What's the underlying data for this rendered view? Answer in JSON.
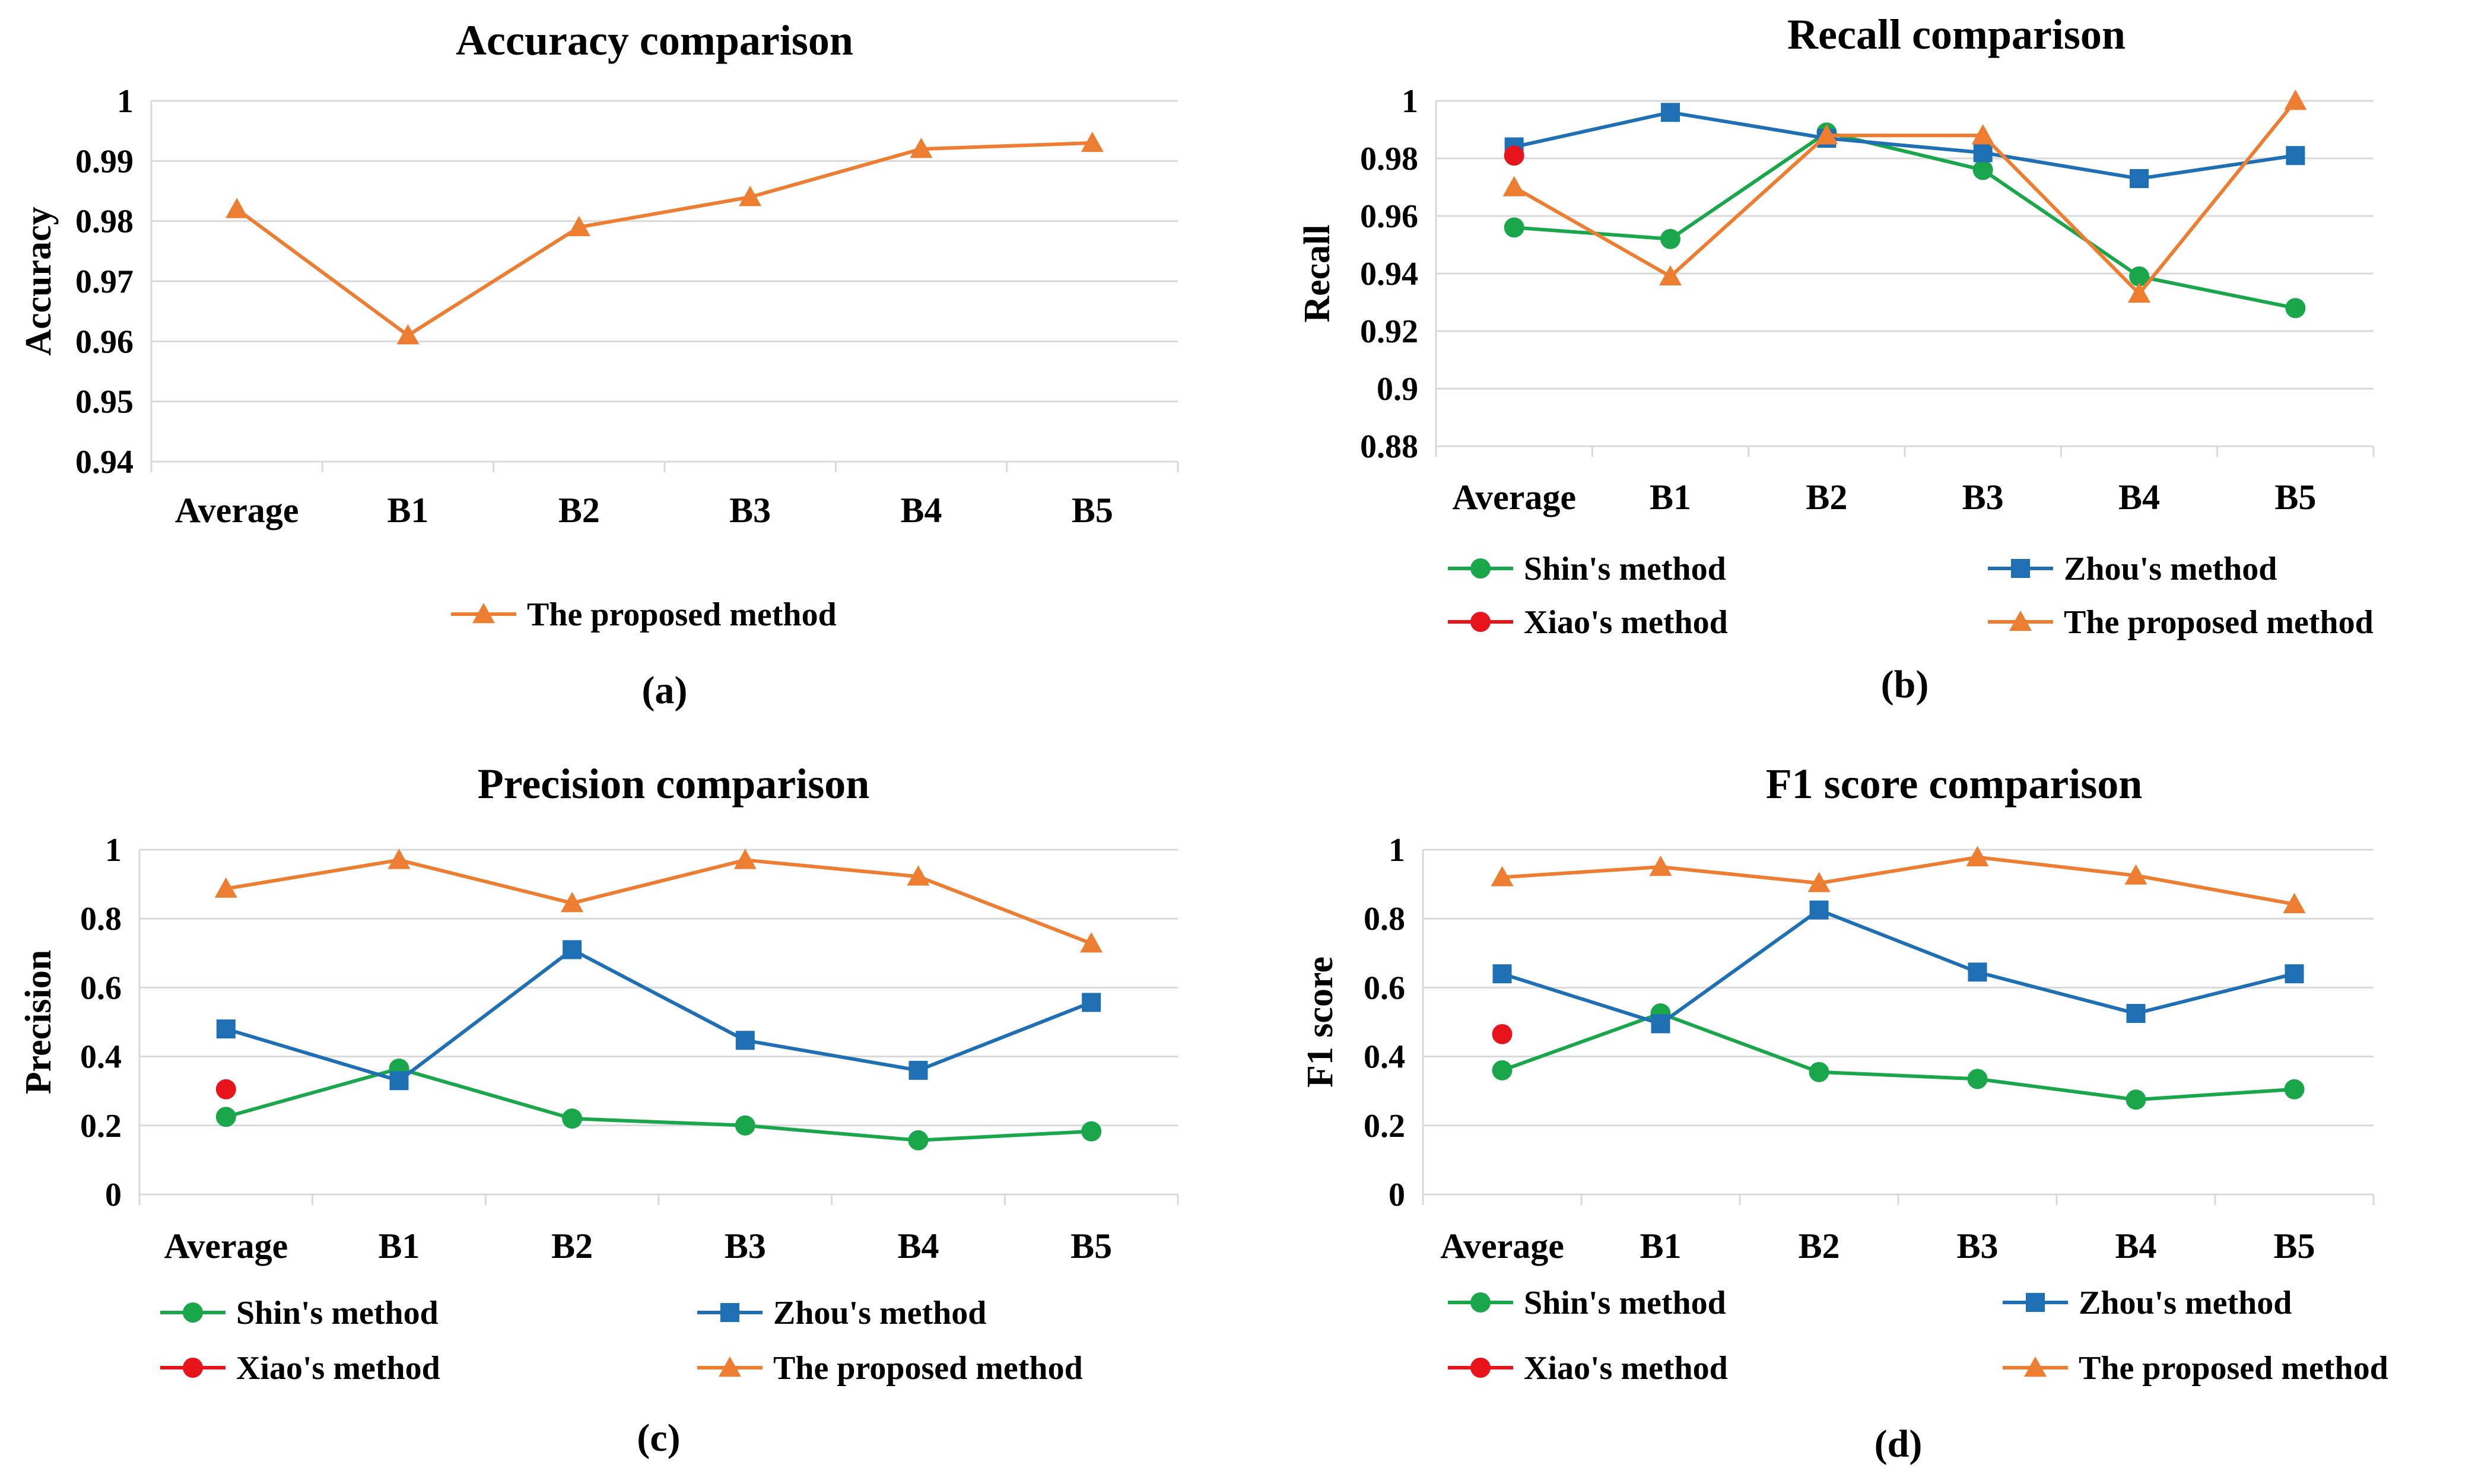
{
  "colors": {
    "shin": "#1aa64a",
    "zhou": "#1f6fb5",
    "xiao": "#e8141c",
    "proposed": "#ed7d31",
    "grid": "#d9d9d9"
  },
  "chart_data": [
    {
      "type": "line",
      "title": "Accuracy comparison",
      "panel_label": "(a)",
      "xlabel": "",
      "ylabel": "Accuracy",
      "categories": [
        "Average",
        "B1",
        "B2",
        "B3",
        "B4",
        "B5"
      ],
      "ylim": [
        0.94,
        1
      ],
      "yticks": [
        0.94,
        0.95,
        0.96,
        0.97,
        0.98,
        0.99,
        1
      ],
      "ytick_labels": [
        "0.94",
        "0.95",
        "0.96",
        "0.97",
        "0.98",
        "0.99",
        "1"
      ],
      "series": [
        {
          "name": "The proposed method",
          "key": "proposed",
          "marker": "triangle",
          "values": [
            0.982,
            0.961,
            0.979,
            0.984,
            0.992,
            0.993
          ]
        }
      ],
      "legend_order": [
        "The proposed method"
      ]
    },
    {
      "type": "line",
      "title": "Recall comparison",
      "panel_label": "(b)",
      "xlabel": "",
      "ylabel": "Recall",
      "categories": [
        "Average",
        "B1",
        "B2",
        "B3",
        "B4",
        "B5"
      ],
      "ylim": [
        0.88,
        1
      ],
      "yticks": [
        0.88,
        0.9,
        0.92,
        0.94,
        0.96,
        0.98,
        1
      ],
      "ytick_labels": [
        "0.88",
        "0.9",
        "0.92",
        "0.94",
        "0.96",
        "0.98",
        "1"
      ],
      "series": [
        {
          "name": "Shin's method",
          "key": "shin",
          "marker": "circle",
          "values": [
            0.956,
            0.952,
            0.989,
            0.976,
            0.939,
            0.928
          ]
        },
        {
          "name": "Zhou's method",
          "key": "zhou",
          "marker": "square",
          "values": [
            0.984,
            0.996,
            0.987,
            0.982,
            0.973,
            0.981
          ]
        },
        {
          "name": "Xiao's method",
          "key": "xiao",
          "marker": "circle",
          "values": [
            0.981,
            null,
            null,
            null,
            null,
            null
          ]
        },
        {
          "name": "The proposed method",
          "key": "proposed",
          "marker": "triangle",
          "values": [
            0.97,
            0.939,
            0.988,
            0.988,
            0.933,
            1.0
          ]
        }
      ],
      "legend_order": [
        "Shin's method",
        "Zhou's method",
        "Xiao's method",
        "The proposed method"
      ]
    },
    {
      "type": "line",
      "title": "Precision comparison",
      "panel_label": "(c)",
      "xlabel": "",
      "ylabel": "Precision",
      "categories": [
        "Average",
        "B1",
        "B2",
        "B3",
        "B4",
        "B5"
      ],
      "ylim": [
        0,
        1
      ],
      "yticks": [
        0,
        0.2,
        0.4,
        0.6,
        0.8,
        1
      ],
      "ytick_labels": [
        "0",
        "0.2",
        "0.4",
        "0.6",
        "0.8",
        "1"
      ],
      "series": [
        {
          "name": "Shin's method",
          "key": "shin",
          "marker": "circle",
          "values": [
            0.225,
            0.365,
            0.22,
            0.2,
            0.157,
            0.183
          ]
        },
        {
          "name": "Zhou's method",
          "key": "zhou",
          "marker": "square",
          "values": [
            0.48,
            0.33,
            0.71,
            0.447,
            0.36,
            0.557
          ]
        },
        {
          "name": "Xiao's method",
          "key": "xiao",
          "marker": "circle",
          "values": [
            0.305,
            null,
            null,
            null,
            null,
            null
          ]
        },
        {
          "name": "The proposed method",
          "key": "proposed",
          "marker": "triangle",
          "values": [
            0.887,
            0.97,
            0.845,
            0.97,
            0.922,
            0.728
          ]
        }
      ],
      "legend_order": [
        "Shin's method",
        "Zhou's method",
        "Xiao's method",
        "The proposed method"
      ]
    },
    {
      "type": "line",
      "title": "F1 score comparison",
      "panel_label": "(d)",
      "xlabel": "",
      "ylabel": "F1 score",
      "categories": [
        "Average",
        "B1",
        "B2",
        "B3",
        "B4",
        "B5"
      ],
      "ylim": [
        0,
        1
      ],
      "yticks": [
        0,
        0.2,
        0.4,
        0.6,
        0.8,
        1
      ],
      "ytick_labels": [
        "0",
        "0.2",
        "0.4",
        "0.6",
        "0.8",
        "1"
      ],
      "series": [
        {
          "name": "Shin's method",
          "key": "shin",
          "marker": "circle",
          "values": [
            0.36,
            0.525,
            0.355,
            0.335,
            0.275,
            0.305
          ]
        },
        {
          "name": "Zhou's method",
          "key": "zhou",
          "marker": "square",
          "values": [
            0.64,
            0.495,
            0.825,
            0.645,
            0.525,
            0.64
          ]
        },
        {
          "name": "Xiao's method",
          "key": "xiao",
          "marker": "circle",
          "values": [
            0.465,
            null,
            null,
            null,
            null,
            null
          ]
        },
        {
          "name": "The proposed method",
          "key": "proposed",
          "marker": "triangle",
          "values": [
            0.92,
            0.95,
            0.903,
            0.978,
            0.925,
            0.842
          ]
        }
      ],
      "legend_order": [
        "Shin's method",
        "Zhou's method",
        "Xiao's method",
        "The proposed method"
      ]
    }
  ]
}
